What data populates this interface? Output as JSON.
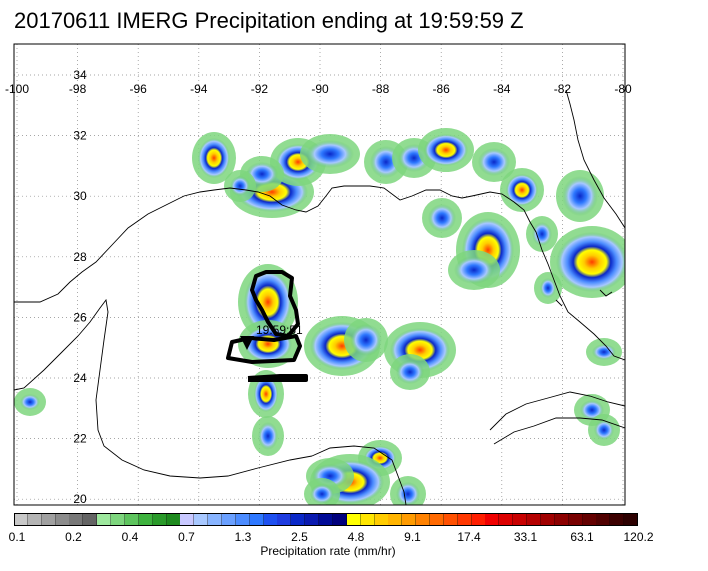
{
  "title": "20170611 IMERG Precipitation ending at 19:59:59 Z",
  "map": {
    "lon_ticks": [
      "-100",
      "-98",
      "-96",
      "-94",
      "-92",
      "-90",
      "-88",
      "-86",
      "-84",
      "-82",
      "-80"
    ],
    "lat_ticks": [
      "34",
      "32",
      "30",
      "28",
      "26",
      "24",
      "22",
      "20"
    ],
    "lon_range": [
      -100,
      -80
    ],
    "lat_range": [
      19.5,
      35
    ],
    "track_time_label": "19:59:51",
    "grid": "dotted"
  },
  "colorbar": {
    "title": "Precipitation rate (mm/hr)",
    "labels": [
      "0.1",
      "0.2",
      "0.4",
      "0.7",
      "1.3",
      "2.5",
      "4.8",
      "9.1",
      "17.4",
      "33.1",
      "63.1",
      "120.2"
    ],
    "colors": [
      "#c8c8c8",
      "#b4b4b4",
      "#a0a0a0",
      "#8c8c8c",
      "#787878",
      "#646464",
      "#9ee89e",
      "#7ed67e",
      "#5ec45e",
      "#3eb23e",
      "#2a9a2a",
      "#1e8a1e",
      "#c8c8ff",
      "#a8c8ff",
      "#88b4ff",
      "#6aa0ff",
      "#4c8cff",
      "#2e78ff",
      "#1e50f0",
      "#1e3ce0",
      "#0a28c8",
      "#0a1ab0",
      "#000a96",
      "#00007d",
      "#ffff00",
      "#ffe600",
      "#ffcc00",
      "#ffb400",
      "#ff9b00",
      "#ff8200",
      "#ff6900",
      "#ff5000",
      "#ff3700",
      "#ff1e00",
      "#f00000",
      "#dc0000",
      "#c80000",
      "#b40000",
      "#a00000",
      "#8c0000",
      "#780000",
      "#640000",
      "#500000",
      "#3c0000",
      "#2d0000"
    ]
  }
}
